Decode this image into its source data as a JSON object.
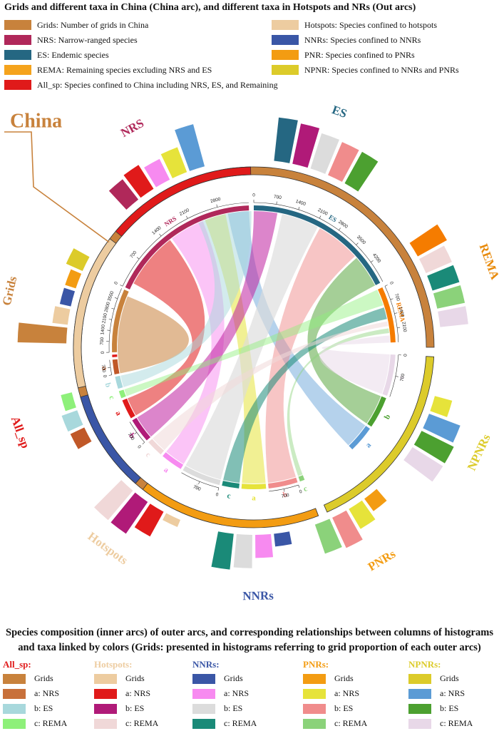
{
  "title": "Grids and different taxa in China (China arc), and different taxa in Hotspots and NRs (Out arcs)",
  "legend_left": [
    {
      "label": "Grids: Number of grids in China",
      "color": "#C8823C"
    },
    {
      "label": "NRS: Narrow-ranged species",
      "color": "#B0285A"
    },
    {
      "label": "ES: Endemic species",
      "color": "#256782"
    },
    {
      "label": "REMA: Remaining species excluding NRS and ES",
      "color": "#F5A31C"
    },
    {
      "label": "All_sp: Species confined to China including NRS, ES, and Remaining",
      "color": "#E01A1A"
    }
  ],
  "legend_right": [
    {
      "label": "Hotspots: Species confined to hotspots",
      "color": "#EDCCA0"
    },
    {
      "label": "NNRs: Species confined to NNRs",
      "color": "#3A56A6"
    },
    {
      "label": "PNR: Species confined to PNRs",
      "color": "#F39C12"
    },
    {
      "label": "NPNR: Species confined to NNRs and PNRs",
      "color": "#DCCB2A"
    }
  ],
  "chart_data": {
    "type": "chord",
    "big_label": "China",
    "outer_arcs": [
      {
        "name": "China",
        "label": "",
        "color": "#C8823C",
        "start": 190,
        "end": 450
      },
      {
        "name": "NPNRs",
        "label": "NPNRs",
        "color": "#DCCB2A",
        "start": 453,
        "end": 516
      },
      {
        "name": "PNRs",
        "label": "PNRs",
        "color": "#F39C12",
        "start": 519,
        "end": 578
      },
      {
        "name": "NNRs",
        "label": "NNRs",
        "color": "#3A56A6",
        "start": 581,
        "end": 614
      },
      {
        "name": "Hotspots",
        "label": "Hotspots",
        "color": "#EDCCA0",
        "start": 617,
        "end": 667
      },
      {
        "name": "All_sp",
        "label": "All_sp",
        "color": "#E01A1A",
        "start": 670,
        "end": 719
      }
    ],
    "outer_labels": [
      {
        "text": "NRS",
        "color": "#B0285A",
        "angle": 331
      },
      {
        "text": "ES",
        "color": "#256782",
        "angle": 20
      },
      {
        "text": "REMA",
        "color": "#E88A0A",
        "angle": 70
      },
      {
        "text": "Grids",
        "color": "#C8823C",
        "angle": 283
      },
      {
        "text": "NPNRs",
        "color": "#DCCB2A",
        "angle": 115
      },
      {
        "text": "PNRs",
        "color": "#F39C12",
        "angle": 149
      },
      {
        "text": "NNRs",
        "color": "#3A56A6",
        "angle": 179
      },
      {
        "text": "Hotspots",
        "color": "#EDCCA0",
        "angle": 216
      },
      {
        "text": "All_sp",
        "color": "#E01A1A",
        "angle": 250
      }
    ],
    "inner_arcs": [
      {
        "id": "grids",
        "label": "",
        "color": "#C8823C",
        "start": 268,
        "end": 294
      },
      {
        "id": "nrs",
        "label": "NRS",
        "color": "#B0285A",
        "start": 295,
        "end": 358
      },
      {
        "id": "es",
        "label": "ES",
        "color": "#256782",
        "start": 360,
        "end": 423
      },
      {
        "id": "rema",
        "label": "REMA",
        "color": "#F57C00",
        "start": 425,
        "end": 448
      },
      {
        "id": "np_c",
        "label": "c",
        "color": "#E8D8E8",
        "start": 453,
        "end": 470
      },
      {
        "id": "np_b",
        "label": "b",
        "color": "#4CA030",
        "start": 471,
        "end": 484
      },
      {
        "id": "np_a",
        "label": "a",
        "color": "#5B9BD5",
        "start": 485,
        "end": 496
      },
      {
        "id": "pn_c",
        "label": "c",
        "color": "#8BD27A",
        "start": 519,
        "end": 521
      },
      {
        "id": "pn_b",
        "label": "b",
        "color": "#F08C8C",
        "start": 522,
        "end": 534
      },
      {
        "id": "pn_a",
        "label": "a",
        "color": "#E6E33A",
        "start": 535,
        "end": 545
      },
      {
        "id": "nn_c",
        "label": "c",
        "color": "#1A8A78",
        "start": 546,
        "end": 553
      },
      {
        "id": "nn_b",
        "label": "b",
        "color": "#DCDCDC",
        "start": 554,
        "end": 570
      },
      {
        "id": "nn_a",
        "label": "a",
        "color": "#F78AF0",
        "start": 571,
        "end": 580
      },
      {
        "id": "ho_c",
        "label": "c",
        "color": "#F0D8D8",
        "start": 581,
        "end": 588
      },
      {
        "id": "ho_b",
        "label": "b",
        "color": "#B01A78",
        "start": 589,
        "end": 599
      },
      {
        "id": "ho_a",
        "label": "a",
        "color": "#E01A1A",
        "start": 600,
        "end": 608
      },
      {
        "id": "al_c",
        "label": "c",
        "color": "#8EF07A",
        "start": 609,
        "end": 612
      },
      {
        "id": "al_b",
        "label": "b",
        "color": "#A8D8DC",
        "start": 613,
        "end": 618
      },
      {
        "id": "al_a",
        "label": "a",
        "color": "#C05828",
        "start": 619,
        "end": 625
      },
      {
        "id": "all_sp",
        "label": "",
        "color": "#E01A1A",
        "start": 626,
        "end": 627
      }
    ],
    "scale_ticks": [
      {
        "arc": "grids",
        "values": [
          "0",
          "700",
          "1400",
          "2100",
          "2800",
          "3500"
        ]
      },
      {
        "arc": "es",
        "values": [
          "0",
          "700",
          "1400",
          "2100",
          "2800",
          "3500",
          "4200"
        ]
      },
      {
        "arc": "rema",
        "values": [
          "0",
          "700",
          "1400",
          "2100"
        ]
      },
      {
        "arc": "nrs",
        "values": [
          "0",
          "700",
          "1400",
          "2100",
          "2800"
        ]
      },
      {
        "arc": "al_a",
        "values": [
          "0",
          "700"
        ]
      },
      {
        "arc": "ho_b",
        "values": [
          "0",
          "700"
        ]
      },
      {
        "arc": "nn_b",
        "values": [
          "0",
          "700"
        ]
      },
      {
        "arc": "pn_b",
        "values": [
          "0",
          "700"
        ]
      },
      {
        "arc": "np_c",
        "values": [
          "0",
          "700"
        ]
      }
    ],
    "chords": [
      {
        "from": "nrs",
        "to": "ho_a",
        "color": "#E01A1A",
        "opacity": 0.55,
        "a1": 298,
        "a2": 322,
        "b1": 600,
        "b2": 608
      },
      {
        "from": "nrs",
        "to": "al_a",
        "color": "#C8823C",
        "opacity": 0.55,
        "a1": 265,
        "a2": 292,
        "b1": 619,
        "b2": 625
      },
      {
        "from": "nrs",
        "to": "nn_a",
        "color": "#F78AF0",
        "opacity": 0.5,
        "a1": 323,
        "a2": 338,
        "b1": 571,
        "b2": 580
      },
      {
        "from": "nrs",
        "to": "pn_a",
        "color": "#E6E33A",
        "opacity": 0.55,
        "a1": 339,
        "a2": 348,
        "b1": 535,
        "b2": 545
      },
      {
        "from": "nrs",
        "to": "np_a",
        "color": "#5B9BD5",
        "opacity": 0.45,
        "a1": 349,
        "a2": 358,
        "b1": 485,
        "b2": 496
      },
      {
        "from": "es",
        "to": "ho_b",
        "color": "#C020A0",
        "opacity": 0.55,
        "a1": 360,
        "a2": 370,
        "b1": 589,
        "b2": 599
      },
      {
        "from": "es",
        "to": "al_b",
        "color": "#A8D8DC",
        "opacity": 0.5,
        "a1": 336,
        "a2": 359,
        "b1": 613,
        "b2": 618
      },
      {
        "from": "es",
        "to": "nn_b",
        "color": "#DCDCDC",
        "opacity": 0.65,
        "a1": 372,
        "a2": 388,
        "b1": 554,
        "b2": 570
      },
      {
        "from": "es",
        "to": "pn_b",
        "color": "#F08C8C",
        "opacity": 0.5,
        "a1": 389,
        "a2": 408,
        "b1": 522,
        "b2": 534
      },
      {
        "from": "es",
        "to": "np_b",
        "color": "#4CA030",
        "opacity": 0.5,
        "a1": 409,
        "a2": 423,
        "b1": 471,
        "b2": 484
      },
      {
        "from": "rema",
        "to": "al_c",
        "color": "#8EF07A",
        "opacity": 0.45,
        "a1": 425,
        "a2": 432,
        "b1": 609,
        "b2": 612
      },
      {
        "from": "rema",
        "to": "nn_c",
        "color": "#1A8A78",
        "opacity": 0.55,
        "a1": 433,
        "a2": 438,
        "b1": 546,
        "b2": 553
      },
      {
        "from": "rema",
        "to": "ho_c",
        "color": "#F0D8D8",
        "opacity": 0.55,
        "a1": 439,
        "a2": 441,
        "b1": 581,
        "b2": 588
      },
      {
        "from": "rema",
        "to": "pn_c",
        "color": "#8BD27A",
        "opacity": 0.45,
        "a1": 442,
        "a2": 444,
        "b1": 519,
        "b2": 521
      },
      {
        "from": "rema",
        "to": "np_c",
        "color": "#E8D8E8",
        "opacity": 0.5,
        "a1": 445,
        "a2": 448,
        "b1": 453,
        "b2": 470
      }
    ],
    "histograms": [
      {
        "center": 331,
        "bars": [
          {
            "label": "NRS",
            "color": "#B0285A",
            "value": 0.5
          },
          {
            "label": "All_sp",
            "color": "#E01A1A",
            "value": 0.55
          },
          {
            "label": "a: NRS",
            "color": "#F78AF0",
            "value": 0.45
          },
          {
            "label": "a: NRS",
            "color": "#E6E33A",
            "value": 0.52
          },
          {
            "label": "a: NRS",
            "color": "#5B9BD5",
            "value": 0.85
          }
        ]
      },
      {
        "center": 20,
        "bars": [
          {
            "label": "ES",
            "color": "#256782",
            "value": 0.85
          },
          {
            "label": "b: ES",
            "color": "#B01A78",
            "value": 0.8
          },
          {
            "label": "b: ES",
            "color": "#DCDCDC",
            "value": 0.72
          },
          {
            "label": "b: ES",
            "color": "#F08C8C",
            "value": 0.7
          },
          {
            "label": "b: ES",
            "color": "#4CA030",
            "value": 0.7
          }
        ]
      },
      {
        "center": 70,
        "bars": [
          {
            "label": "REMA",
            "color": "#F57C00",
            "value": 0.65
          },
          {
            "label": "c: REMA",
            "color": "#F0D8D8",
            "value": 0.55
          },
          {
            "label": "c: REMA",
            "color": "#1A8A78",
            "value": 0.55
          },
          {
            "label": "c: REMA",
            "color": "#8BD27A",
            "value": 0.55
          },
          {
            "label": "c: REMA",
            "color": "#E8D8E8",
            "value": 0.55
          }
        ]
      },
      {
        "center": 285,
        "bars": [
          {
            "label": "Grids",
            "color": "#C8823C",
            "value": 0.95
          },
          {
            "label": "Grids",
            "color": "#EDCCA0",
            "value": 0.3
          },
          {
            "label": "Grids",
            "color": "#3A56A6",
            "value": 0.22
          },
          {
            "label": "Grids",
            "color": "#F39C12",
            "value": 0.22
          },
          {
            "label": "Grids",
            "color": "#DCCB2A",
            "value": 0.35
          }
        ]
      },
      {
        "center": 116,
        "bars": [
          {
            "label": "a: NRS",
            "color": "#E6E33A",
            "value": 0.35
          },
          {
            "label": "a: NRS",
            "color": "#5B9BD5",
            "value": 0.65
          },
          {
            "label": "b: ES",
            "color": "#4CA030",
            "value": 0.7
          },
          {
            "label": "c: REMA",
            "color": "#E8D8E8",
            "value": 0.7
          }
        ]
      },
      {
        "center": 150,
        "bars": [
          {
            "label": "Grids",
            "color": "#F39C12",
            "value": 0.3
          },
          {
            "label": "a: NRS",
            "color": "#E6E33A",
            "value": 0.45
          },
          {
            "label": "b: ES",
            "color": "#F08C8C",
            "value": 0.65
          },
          {
            "label": "c: REMA",
            "color": "#8BD27A",
            "value": 0.6
          }
        ]
      },
      {
        "center": 180,
        "bars": [
          {
            "label": "Grids",
            "color": "#3A56A6",
            "value": 0.25
          },
          {
            "label": "a: NRS",
            "color": "#F78AF0",
            "value": 0.45
          },
          {
            "label": "b: ES",
            "color": "#DCDCDC",
            "value": 0.65
          },
          {
            "label": "c: REMA",
            "color": "#1A8A78",
            "value": 0.7
          }
        ]
      },
      {
        "center": 214,
        "bars": [
          {
            "label": "Grids",
            "color": "#EDCCA0",
            "value": 0.15
          },
          {
            "label": "a: NRS",
            "color": "#E01A1A",
            "value": 0.55
          },
          {
            "label": "b: ES",
            "color": "#B01A78",
            "value": 0.75
          },
          {
            "label": "c: REMA",
            "color": "#F0D8D8",
            "value": 0.75
          }
        ]
      },
      {
        "center": 248,
        "bars": [
          {
            "label": "a: NRS",
            "color": "#C05828",
            "value": 0.3
          },
          {
            "label": "b: ES",
            "color": "#A8D8DC",
            "value": 0.32
          },
          {
            "label": "c: REMA",
            "color": "#8EF07A",
            "value": 0.22
          }
        ]
      }
    ]
  },
  "bottom_title": "Species composition (inner arcs) of outer arcs, and corresponding relationships between columns of histograms and taxa linked by colors (Grids: presented in histograms referring to grid proportion of each outer arcs)",
  "bottom_legend": [
    {
      "title": "All_sp:",
      "color": "#E01A1A",
      "items": [
        {
          "label": "Grids",
          "color": "#C8823C"
        },
        {
          "label": "a: NRS",
          "color": "#C8703A"
        },
        {
          "label": "b: ES",
          "color": "#A8D8DC"
        },
        {
          "label": "c: REMA",
          "color": "#8EF07A"
        }
      ]
    },
    {
      "title": "Hotspots:",
      "color": "#EDCCA0",
      "items": [
        {
          "label": "Grids",
          "color": "#EDCCA0"
        },
        {
          "label": "a: NRS",
          "color": "#E01A1A"
        },
        {
          "label": "b: ES",
          "color": "#B01A78"
        },
        {
          "label": "c: REMA",
          "color": "#F0D8D8"
        }
      ]
    },
    {
      "title": "NNRs:",
      "color": "#3A56A6",
      "items": [
        {
          "label": "Grids",
          "color": "#3A56A6"
        },
        {
          "label": "a: NRS",
          "color": "#F78AF0"
        },
        {
          "label": "b: ES",
          "color": "#DCDCDC"
        },
        {
          "label": "c: REMA",
          "color": "#1A8A78"
        }
      ]
    },
    {
      "title": "PNRs:",
      "color": "#F39C12",
      "items": [
        {
          "label": "Grids",
          "color": "#F39C12"
        },
        {
          "label": "a: NRS",
          "color": "#E6E33A"
        },
        {
          "label": "b: ES",
          "color": "#F08C8C"
        },
        {
          "label": "c: REMA",
          "color": "#8BD27A"
        }
      ]
    },
    {
      "title": "NPNRs:",
      "color": "#DCCB2A",
      "items": [
        {
          "label": "Grids",
          "color": "#DCCB2A"
        },
        {
          "label": "a: NRS",
          "color": "#5B9BD5"
        },
        {
          "label": "b: ES",
          "color": "#4CA030"
        },
        {
          "label": "c: REMA",
          "color": "#E8D8E8"
        }
      ]
    }
  ]
}
